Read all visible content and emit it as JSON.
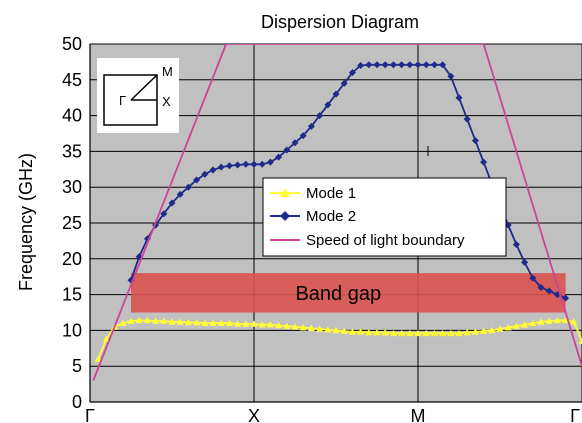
{
  "chart_data": {
    "type": "line",
    "title": "Dispersion Diagram",
    "xlabel": "",
    "ylabel": "Frequency (GHz)",
    "ylim": [
      0,
      50
    ],
    "yticks": [
      0,
      5,
      10,
      15,
      20,
      25,
      30,
      35,
      40,
      45,
      50
    ],
    "xlim": [
      0,
      3
    ],
    "xticks": [
      {
        "value": 0,
        "label": "Γ"
      },
      {
        "value": 1,
        "label": "X"
      },
      {
        "value": 2,
        "label": "M"
      },
      {
        "value": 3,
        "label": "Γ"
      }
    ],
    "grid": true,
    "legend_position": "center",
    "colors": {
      "plot_bg": "#c0c0c0",
      "mode1": "#ffff33",
      "mode2": "#1f2a8a",
      "light": "#cc4499",
      "band_gap": "#d9534f"
    },
    "series": [
      {
        "name": "Mode 1",
        "marker": "triangle",
        "x": [
          0.05,
          0.1,
          0.15,
          0.2,
          0.25,
          0.3,
          0.35,
          0.4,
          0.45,
          0.5,
          0.55,
          0.6,
          0.65,
          0.7,
          0.75,
          0.8,
          0.85,
          0.9,
          0.95,
          1.0,
          1.05,
          1.1,
          1.15,
          1.2,
          1.25,
          1.3,
          1.35,
          1.4,
          1.45,
          1.5,
          1.55,
          1.6,
          1.65,
          1.7,
          1.75,
          1.8,
          1.85,
          1.9,
          1.95,
          2.0,
          2.05,
          2.1,
          2.15,
          2.2,
          2.25,
          2.3,
          2.35,
          2.4,
          2.45,
          2.5,
          2.55,
          2.6,
          2.65,
          2.7,
          2.75,
          2.8,
          2.85,
          2.9,
          2.95,
          3.0
        ],
        "y": [
          6.0,
          8.8,
          10.5,
          11.0,
          11.3,
          11.4,
          11.4,
          11.3,
          11.3,
          11.2,
          11.2,
          11.1,
          11.1,
          11.0,
          11.0,
          11.0,
          11.0,
          10.9,
          10.9,
          10.9,
          10.8,
          10.8,
          10.7,
          10.6,
          10.5,
          10.4,
          10.3,
          10.2,
          10.1,
          10.0,
          9.9,
          9.8,
          9.8,
          9.7,
          9.7,
          9.7,
          9.6,
          9.6,
          9.6,
          9.6,
          9.6,
          9.6,
          9.6,
          9.6,
          9.6,
          9.7,
          9.8,
          9.9,
          10.0,
          10.2,
          10.4,
          10.6,
          10.8,
          11.0,
          11.2,
          11.3,
          11.4,
          11.4,
          11.2,
          8.5
        ]
      },
      {
        "name": "Mode 2",
        "marker": "diamond",
        "x": [
          0.25,
          0.3,
          0.35,
          0.4,
          0.45,
          0.5,
          0.55,
          0.6,
          0.65,
          0.7,
          0.75,
          0.8,
          0.85,
          0.9,
          0.95,
          1.0,
          1.05,
          1.1,
          1.15,
          1.2,
          1.25,
          1.3,
          1.35,
          1.4,
          1.45,
          1.5,
          1.55,
          1.6,
          1.65,
          1.7,
          1.75,
          1.8,
          1.85,
          1.9,
          1.95,
          2.0,
          2.05,
          2.1,
          2.15,
          2.2,
          2.25,
          2.3,
          2.35,
          2.4,
          2.45,
          2.5,
          2.55,
          2.6,
          2.65,
          2.7,
          2.75,
          2.8,
          2.85,
          2.9
        ],
        "y": [
          17.0,
          20.3,
          22.8,
          24.7,
          26.3,
          27.8,
          29.0,
          30.0,
          31.0,
          31.8,
          32.4,
          32.8,
          33.0,
          33.1,
          33.2,
          33.2,
          33.2,
          33.5,
          34.2,
          35.2,
          36.2,
          37.2,
          38.5,
          40.0,
          41.5,
          43.0,
          44.5,
          46.0,
          47.0,
          47.1,
          47.1,
          47.1,
          47.1,
          47.1,
          47.1,
          47.1,
          47.1,
          47.1,
          47.1,
          45.5,
          42.5,
          39.5,
          36.5,
          33.5,
          30.5,
          27.5,
          24.7,
          22.0,
          19.5,
          17.3,
          16.0,
          15.5,
          15.0,
          14.5
        ]
      },
      {
        "name": "Speed of light boundary",
        "marker": "none",
        "x": [
          0.02,
          0.83,
          2.4,
          3.0
        ],
        "y": [
          3.0,
          50.0,
          50.0,
          5.0
        ]
      }
    ],
    "annotations": [
      {
        "text": "Band gap",
        "x_from": 0.25,
        "x_to": 2.9,
        "y_from": 12.5,
        "y_to": 18.0
      }
    ],
    "inset": {
      "labels": [
        "Γ",
        "M",
        "X"
      ]
    }
  }
}
